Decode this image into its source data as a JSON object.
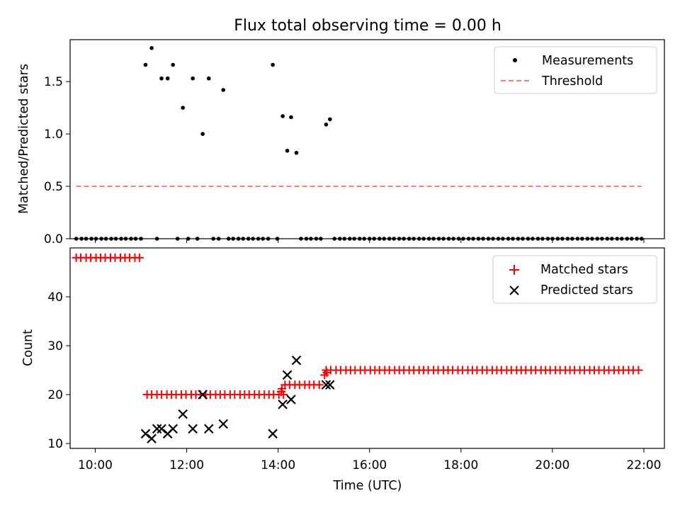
{
  "title": "Flux total observing time = 0.00 h",
  "chart_data": [
    {
      "type": "scatter",
      "ylabel": "Matched/Predicted stars",
      "ylim": [
        0,
        1.9
      ],
      "yticks": [
        0.0,
        0.5,
        1.0,
        1.5
      ],
      "ytick_labels": [
        "0.0",
        "0.5",
        "1.0",
        "1.5"
      ],
      "xlim": [
        "09:27",
        "22:27"
      ],
      "legend_placement": "top-right",
      "series": [
        {
          "name": "Measurements",
          "marker": "dot",
          "color": "#000000",
          "points": [
            [
              "09:35",
              0
            ],
            [
              "09:42",
              0
            ],
            [
              "09:48",
              0
            ],
            [
              "09:55",
              0
            ],
            [
              "10:01",
              0
            ],
            [
              "10:08",
              0
            ],
            [
              "10:14",
              0
            ],
            [
              "10:21",
              0
            ],
            [
              "10:27",
              0
            ],
            [
              "10:34",
              0
            ],
            [
              "10:40",
              0
            ],
            [
              "10:47",
              0
            ],
            [
              "10:53",
              0
            ],
            [
              "11:00",
              0
            ],
            [
              "11:06",
              1.66
            ],
            [
              "11:14",
              1.82
            ],
            [
              "11:21",
              0
            ],
            [
              "11:27",
              1.53
            ],
            [
              "11:35",
              1.53
            ],
            [
              "11:42",
              1.66
            ],
            [
              "11:48",
              0
            ],
            [
              "11:55",
              1.25
            ],
            [
              "12:02",
              0
            ],
            [
              "12:08",
              1.53
            ],
            [
              "12:14",
              0
            ],
            [
              "12:21",
              1.0
            ],
            [
              "12:29",
              1.53
            ],
            [
              "12:35",
              0
            ],
            [
              "12:42",
              0
            ],
            [
              "12:48",
              1.42
            ],
            [
              "12:55",
              0
            ],
            [
              "13:01",
              0
            ],
            [
              "13:08",
              0
            ],
            [
              "13:14",
              0
            ],
            [
              "13:21",
              0
            ],
            [
              "13:27",
              0
            ],
            [
              "13:34",
              0
            ],
            [
              "13:40",
              0
            ],
            [
              "13:47",
              0
            ],
            [
              "13:53",
              1.66
            ],
            [
              "13:59",
              0
            ],
            [
              "14:06",
              1.17
            ],
            [
              "14:12",
              0.84
            ],
            [
              "14:17",
              1.16
            ],
            [
              "14:24",
              0.82
            ],
            [
              "14:30",
              0
            ],
            [
              "14:37",
              0
            ],
            [
              "14:43",
              0
            ],
            [
              "14:50",
              0
            ],
            [
              "14:56",
              0
            ],
            [
              "15:03",
              1.09
            ],
            [
              "15:08",
              1.14
            ],
            [
              "15:14",
              0
            ],
            [
              "15:21",
              0
            ],
            [
              "15:27",
              0
            ],
            [
              "15:34",
              0
            ],
            [
              "15:40",
              0
            ],
            [
              "15:47",
              0
            ],
            [
              "15:53",
              0
            ],
            [
              "16:00",
              0
            ],
            [
              "16:06",
              0
            ],
            [
              "16:13",
              0
            ],
            [
              "16:19",
              0
            ],
            [
              "16:26",
              0
            ],
            [
              "16:32",
              0
            ],
            [
              "16:39",
              0
            ],
            [
              "16:45",
              0
            ],
            [
              "16:52",
              0
            ],
            [
              "16:58",
              0
            ],
            [
              "17:05",
              0
            ],
            [
              "17:11",
              0
            ],
            [
              "17:18",
              0
            ],
            [
              "17:24",
              0
            ],
            [
              "17:31",
              0
            ],
            [
              "17:37",
              0
            ],
            [
              "17:44",
              0
            ],
            [
              "17:50",
              0
            ],
            [
              "17:57",
              0
            ],
            [
              "18:03",
              0
            ],
            [
              "18:10",
              0
            ],
            [
              "18:16",
              0
            ],
            [
              "18:23",
              0
            ],
            [
              "18:29",
              0
            ],
            [
              "18:36",
              0
            ],
            [
              "18:42",
              0
            ],
            [
              "18:49",
              0
            ],
            [
              "18:55",
              0
            ],
            [
              "19:02",
              0
            ],
            [
              "19:08",
              0
            ],
            [
              "19:15",
              0
            ],
            [
              "19:21",
              0
            ],
            [
              "19:28",
              0
            ],
            [
              "19:34",
              0
            ],
            [
              "19:41",
              0
            ],
            [
              "19:47",
              0
            ],
            [
              "19:54",
              0
            ],
            [
              "20:00",
              0
            ],
            [
              "20:07",
              0
            ],
            [
              "20:13",
              0
            ],
            [
              "20:20",
              0
            ],
            [
              "20:26",
              0
            ],
            [
              "20:33",
              0
            ],
            [
              "20:39",
              0
            ],
            [
              "20:46",
              0
            ],
            [
              "20:52",
              0
            ],
            [
              "20:59",
              0
            ],
            [
              "21:05",
              0
            ],
            [
              "21:12",
              0
            ],
            [
              "21:18",
              0
            ],
            [
              "21:25",
              0
            ],
            [
              "21:31",
              0
            ],
            [
              "21:38",
              0
            ],
            [
              "21:44",
              0
            ],
            [
              "21:51",
              0
            ],
            [
              "21:57",
              0
            ]
          ]
        },
        {
          "name": "Threshold",
          "type": "line",
          "style": "dashed",
          "color": "#ff7f7f",
          "points": [
            [
              "09:35",
              0.5
            ],
            [
              "21:57",
              0.5
            ]
          ]
        }
      ]
    },
    {
      "type": "scatter",
      "xlabel": "Time (UTC)",
      "ylabel": "Count",
      "ylim": [
        9,
        50
      ],
      "yticks": [
        10,
        20,
        30,
        40
      ],
      "ytick_labels": [
        "10",
        "20",
        "30",
        "40"
      ],
      "xlim": [
        "09:27",
        "22:27"
      ],
      "xticks": [
        "10:00",
        "12:00",
        "14:00",
        "16:00",
        "18:00",
        "20:00",
        "22:00"
      ],
      "xtick_labels": [
        "10:00",
        "12:00",
        "14:00",
        "16:00",
        "18:00",
        "20:00",
        "22:00"
      ],
      "legend_placement": "top-right",
      "series": [
        {
          "name": "Matched stars",
          "marker": "plus",
          "color": "#ff0000",
          "steps": [
            {
              "from": "09:35",
              "to": "11:04",
              "value": 48
            },
            {
              "from": "11:08",
              "to": "14:08",
              "value": 20
            },
            {
              "from": "14:09",
              "to": "14:58",
              "value": 22
            },
            {
              "from": "15:03",
              "to": "21:57",
              "value": 25
            }
          ],
          "extra_points": [
            [
              "14:04",
              20.6
            ],
            [
              "14:05",
              21.2
            ],
            [
              "15:01",
              24.0
            ],
            [
              "15:04",
              24.5
            ]
          ]
        },
        {
          "name": "Predicted stars",
          "marker": "x",
          "color": "#000000",
          "points": [
            [
              "11:06",
              12
            ],
            [
              "11:14",
              11
            ],
            [
              "11:21",
              13
            ],
            [
              "11:27",
              13
            ],
            [
              "11:35",
              12
            ],
            [
              "11:42",
              13
            ],
            [
              "11:55",
              16
            ],
            [
              "12:08",
              13
            ],
            [
              "12:21",
              20
            ],
            [
              "12:29",
              13
            ],
            [
              "12:48",
              14
            ],
            [
              "13:53",
              12
            ],
            [
              "14:06",
              18
            ],
            [
              "14:12",
              24
            ],
            [
              "14:17",
              19
            ],
            [
              "14:24",
              27
            ],
            [
              "15:03",
              22
            ],
            [
              "15:08",
              22
            ]
          ]
        }
      ]
    }
  ]
}
